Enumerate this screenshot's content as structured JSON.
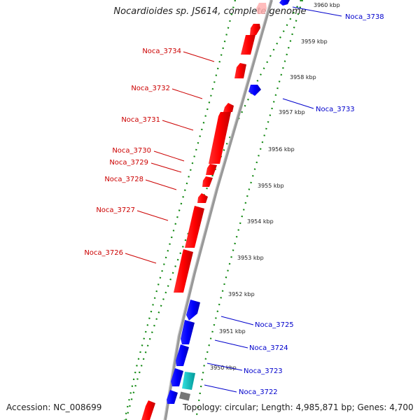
{
  "title": "Nocardioides sp. JS614, complete genome",
  "accession": "Accession: NC_008699",
  "stats": "Topology: circular; Length: 4,985,871 bp; Genes: 4,700",
  "colors": {
    "forward": "#ff0000",
    "reverse": "#0000ff",
    "rna": "#00cccc",
    "other": "#777777",
    "forward_label": "#cc0000",
    "reverse_label": "#0000cc",
    "dots": "#118811",
    "backbone": "#888888"
  },
  "ticks": [
    "3960 kbp",
    "3959 kbp",
    "3958 kbp",
    "3957 kbp",
    "3956 kbp",
    "3955 kbp",
    "3954 kbp",
    "3953 kbp",
    "3952 kbp",
    "3951 kbp",
    "3950 kbp"
  ],
  "forward_labels": [
    "Noca_3734",
    "Noca_3732",
    "Noca_3731",
    "Noca_3730",
    "Noca_3729",
    "Noca_3728",
    "Noca_3727",
    "Noca_3726"
  ],
  "reverse_labels": [
    "Noca_3738",
    "Noca_3733",
    "Noca_3725",
    "Noca_3724",
    "Noca_3723",
    "Noca_3722"
  ]
}
